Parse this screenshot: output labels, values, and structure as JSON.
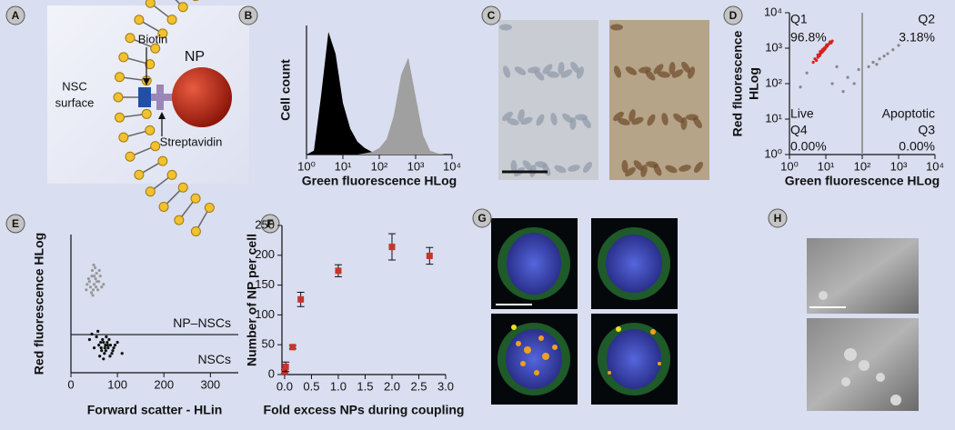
{
  "panels": {
    "labels": [
      "A",
      "B",
      "C",
      "D",
      "E",
      "F",
      "G",
      "H"
    ],
    "diagram": {
      "nsc": [
        "NSC",
        "surface"
      ],
      "biotin": "Biotin",
      "np": "NP",
      "streptavidin": "Streptavidin"
    }
  },
  "chart_data": [
    {
      "type": "area",
      "xlabel": "Green fluorescence HLog",
      "ylabel": "Cell count",
      "xscale": "log",
      "xlim": [
        1,
        10000
      ],
      "ylim": [
        0,
        100
      ],
      "xticks": [
        {
          "value": 1,
          "label": "10⁰"
        },
        {
          "value": 10,
          "label": "10¹"
        },
        {
          "value": 100,
          "label": "10²"
        },
        {
          "value": 1000,
          "label": "10³"
        },
        {
          "value": 10000,
          "label": "10⁴"
        }
      ],
      "x": [
        1,
        1.6,
        2.5,
        4,
        6.3,
        10,
        16,
        25,
        40,
        63,
        100,
        160,
        250,
        400,
        630,
        1000,
        1600,
        2500,
        4000,
        6300,
        10000
      ],
      "series": [
        {
          "color": "#000000",
          "values": [
            0,
            3,
            45,
            95,
            78,
            40,
            20,
            10,
            5,
            2,
            1,
            0,
            0,
            0,
            0,
            0,
            0,
            0,
            0,
            0,
            0
          ]
        },
        {
          "color": "#a0a0a0",
          "values": [
            0,
            0,
            0,
            0,
            0,
            0,
            0,
            0,
            1,
            2,
            5,
            12,
            30,
            62,
            75,
            45,
            15,
            3,
            1,
            0,
            0
          ]
        }
      ]
    },
    {
      "type": "scatter",
      "xlabel": "Green fluorescence HLog",
      "ylabel": [
        "Red fluorescence",
        "HLog"
      ],
      "xscale": "log",
      "yscale": "log",
      "xlim": [
        1,
        10000
      ],
      "ylim": [
        1,
        10000
      ],
      "gate_x": 100,
      "xticks": [
        {
          "value": 1,
          "label": "10⁰"
        },
        {
          "value": 10,
          "label": "10¹"
        },
        {
          "value": 100,
          "label": "10²"
        },
        {
          "value": 1000,
          "label": "10³"
        },
        {
          "value": 10000,
          "label": "10⁴"
        }
      ],
      "yticks": [
        {
          "value": 1,
          "label": "10⁰"
        },
        {
          "value": 10,
          "label": "10¹"
        },
        {
          "value": 100,
          "label": "10²"
        },
        {
          "value": 1000,
          "label": "10³"
        },
        {
          "value": 10000,
          "label": "10⁴"
        }
      ],
      "annotations": [
        "Q1",
        "96.8%",
        "Q2",
        "3.18%",
        "Live",
        "Q4",
        "0.00%",
        "Apoptotic",
        "Q3",
        "0.00%"
      ],
      "series": [
        {
          "color": "#888888",
          "x": [
            3,
            20,
            40,
            80,
            200,
            300,
            500,
            700,
            1000,
            2,
            15,
            30,
            150,
            400,
            60,
            250
          ],
          "values": [
            200,
            300,
            150,
            250,
            400,
            500,
            700,
            900,
            1200,
            80,
            100,
            60,
            300,
            600,
            100,
            350
          ]
        },
        {
          "color": "#d62020",
          "x": [
            5,
            6,
            7,
            8,
            9,
            10,
            11,
            6.5,
            7.5,
            8.5,
            9.5,
            12,
            5.5,
            7,
            8,
            9,
            10,
            13,
            6,
            7,
            8,
            11,
            14,
            4.5,
            9,
            10.5,
            7.2,
            8.8,
            15,
            6.8
          ],
          "values": [
            500,
            650,
            800,
            900,
            1000,
            1100,
            1200,
            600,
            750,
            850,
            950,
            1300,
            450,
            700,
            800,
            1000,
            1050,
            1500,
            550,
            680,
            780,
            1150,
            1400,
            400,
            900,
            1250,
            720,
            880,
            1600,
            620
          ]
        }
      ]
    },
    {
      "type": "scatter",
      "xlabel": "Forward scatter - HLin",
      "ylabel": "Red fluorescence HLog",
      "xlim": [
        0,
        360
      ],
      "ylim": [
        0,
        5
      ],
      "xticks": [
        0,
        100,
        200,
        300
      ],
      "gate_y": 1.38,
      "annotations": [
        "NP–NSCs",
        "NSCs"
      ],
      "series": [
        {
          "color": "#999999",
          "x": [
            40,
            45,
            50,
            55,
            60,
            48,
            52,
            38,
            42,
            58,
            63,
            46,
            53,
            35,
            66,
            50,
            44,
            56,
            61,
            49,
            70,
            33,
            47,
            54
          ],
          "values": [
            3.3,
            3.5,
            3.2,
            3.6,
            3.3,
            3.0,
            3.8,
            3.4,
            3.1,
            3.0,
            3.5,
            3.7,
            3.4,
            3.2,
            3.1,
            3.5,
            2.9,
            3.3,
            3.7,
            3.9,
            3.2,
            3.0,
            2.8,
            3.1
          ]
        },
        {
          "color": "#111111",
          "x": [
            60,
            65,
            70,
            75,
            80,
            85,
            72,
            68,
            78,
            90,
            55,
            62,
            74,
            82,
            88,
            95,
            50,
            45,
            70,
            76,
            66,
            100,
            58,
            84,
            73,
            79,
            64,
            92,
            40,
            110
          ],
          "values": [
            1.0,
            0.9,
            1.1,
            0.8,
            0.9,
            1.0,
            0.7,
            1.2,
            1.1,
            0.8,
            1.3,
            0.6,
            1.0,
            1.2,
            0.7,
            1.0,
            0.9,
            1.4,
            0.5,
            1.3,
            0.8,
            1.1,
            1.5,
            0.6,
            0.9,
            1.0,
            1.1,
            0.9,
            1.2,
            0.7
          ]
        }
      ]
    },
    {
      "type": "scatter",
      "xlabel": "Fold excess NPs during coupling",
      "ylabel": "Number of NP per cell",
      "xlim": [
        -0.05,
        3.0
      ],
      "ylim": [
        0,
        250
      ],
      "xticks": [
        {
          "value": 0,
          "label": "0.0"
        },
        0.5,
        {
          "value": 1,
          "label": "1.0"
        },
        1.5,
        {
          "value": 2,
          "label": "2.0"
        },
        2.5,
        {
          "value": 3,
          "label": "3.0"
        }
      ],
      "yticks": [
        0,
        50,
        100,
        150,
        200,
        250
      ],
      "series": [
        {
          "color": "#c8342a",
          "marker": "square",
          "x": [
            0,
            0.02,
            0.15,
            0.3,
            1.0,
            2.0,
            2.7
          ],
          "values": [
            5,
            13,
            46,
            126,
            174,
            214,
            199
          ],
          "errors": [
            3,
            8,
            3,
            12,
            10,
            22,
            14
          ]
        }
      ]
    }
  ]
}
